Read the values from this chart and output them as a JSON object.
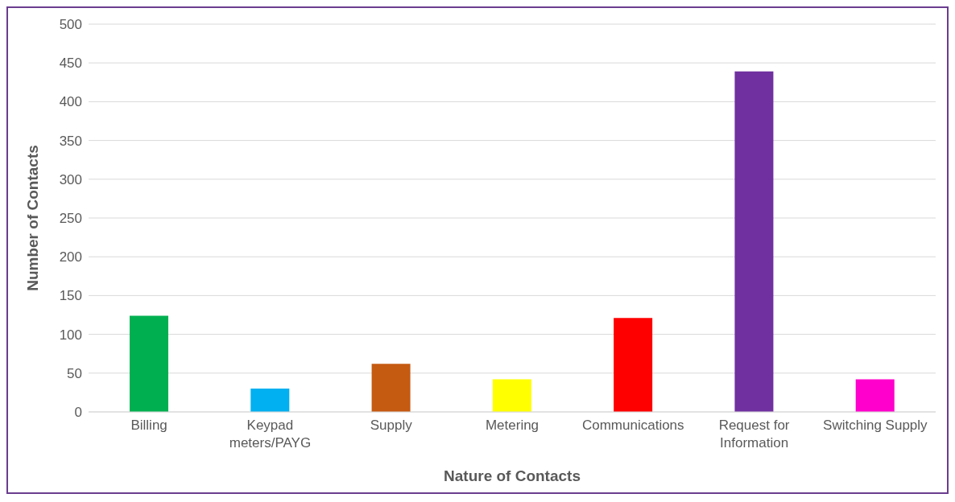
{
  "chart_data": {
    "type": "bar",
    "xlabel": "Nature of Contacts",
    "ylabel": "Number of Contacts",
    "categories": [
      "Billing",
      "Keypad meters/PAYG",
      "Supply",
      "Metering",
      "Communications",
      "Request for Information",
      "Switching Supply"
    ],
    "values": [
      124,
      30,
      62,
      42,
      121,
      439,
      42
    ],
    "colors": [
      "#00b050",
      "#00b0f0",
      "#c55a11",
      "#ffff00",
      "#ff0000",
      "#7030a0",
      "#ff00cc"
    ],
    "ylim": [
      0,
      500
    ],
    "yticks": [
      0,
      50,
      100,
      150,
      200,
      250,
      300,
      350,
      400,
      450,
      500
    ],
    "grid": "y"
  }
}
